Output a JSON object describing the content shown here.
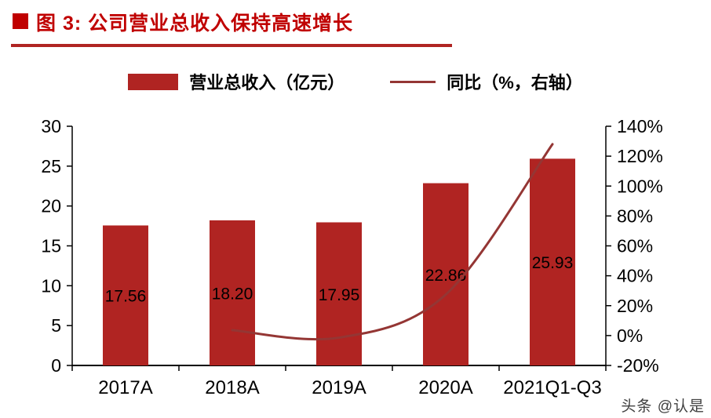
{
  "figure": {
    "title": "图 3:  公司营业总收入保持高速增长",
    "accent_color": "#c00000",
    "rule_color": "#b02422"
  },
  "legend": {
    "bar_label": "营业总收入（亿元）",
    "line_label": "同比（%，右轴）"
  },
  "watermark": "头条 @认是",
  "chart_data": {
    "type": "bar",
    "title": "公司营业总收入保持高速增长",
    "categories": [
      "2017A",
      "2018A",
      "2019A",
      "2020A",
      "2021Q1-Q3"
    ],
    "series": [
      {
        "name": "营业总收入（亿元）",
        "type": "bar",
        "axis": "left",
        "values": [
          17.56,
          18.2,
          17.95,
          22.86,
          25.93
        ],
        "color": "#b02422",
        "data_labels": true
      },
      {
        "name": "同比（%，右轴）",
        "type": "line",
        "axis": "right",
        "x": [
          "2018A",
          "2019A",
          "2020A",
          "2021Q1-Q3"
        ],
        "values": [
          3.6,
          -1.4,
          27.4,
          128
        ],
        "color": "#943634"
      }
    ],
    "left_axis": {
      "min": 0,
      "max": 30,
      "ticks": [
        0,
        5,
        10,
        15,
        20,
        25,
        30
      ]
    },
    "right_axis": {
      "min": -20,
      "max": 140,
      "ticks": [
        -20,
        0,
        20,
        40,
        60,
        80,
        100,
        120,
        140
      ],
      "suffix": "%"
    },
    "grid": false,
    "legend_position": "top"
  }
}
